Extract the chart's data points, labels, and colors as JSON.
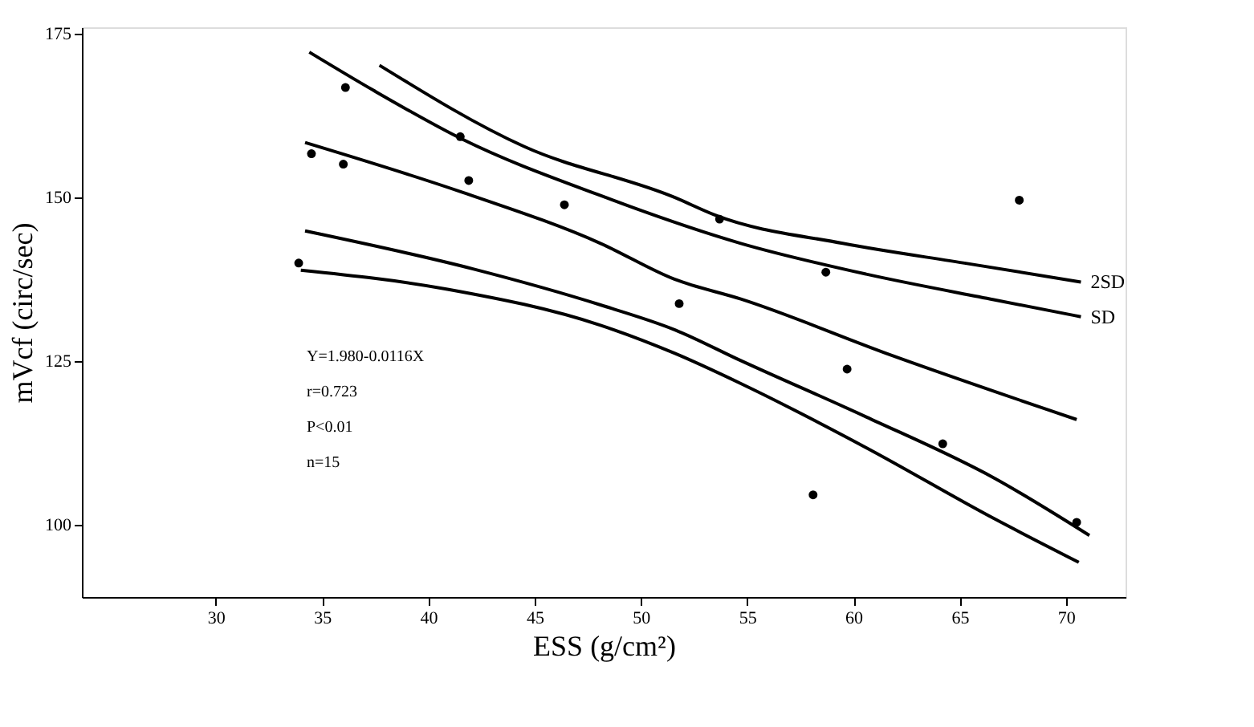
{
  "chart_data": {
    "type": "scatter",
    "xlabel": "ESS (g/cm²)",
    "ylabel": "mVcf (circ/sec)",
    "xlim": [
      23.7,
      72.8
    ],
    "ylim": [
      89,
      176
    ],
    "xticks": [
      30,
      35,
      40,
      45,
      50,
      55,
      60,
      65,
      70
    ],
    "yticks": [
      100,
      125,
      150,
      175
    ],
    "grid": false,
    "legend": false,
    "marker": "circle",
    "annotations": [
      "Y=1.980-0.0116X",
      "r=0.723",
      "P<0.01",
      "n=15"
    ],
    "series": [
      {
        "color": "#000000",
        "x": [
          33.9,
          34.5,
          36.1,
          36.0,
          41.5,
          41.9,
          46.4,
          53.7,
          67.8,
          58.7,
          51.8,
          59.7,
          64.2,
          58.1,
          70.5
        ],
        "values": [
          140,
          156.7,
          166.8,
          155.1,
          159.3,
          152.6,
          148.9,
          146.7,
          149.6,
          138.6,
          133.8,
          123.8,
          112.4,
          104.6,
          100.4
        ]
      },
      {
        "type": "line",
        "name": "2SD",
        "color": "#000000",
        "marker": "none",
        "line_style": "solid",
        "x": [
          37.7,
          44.5,
          51.6,
          53.5,
          59.5,
          65.4,
          70.7
        ],
        "values": [
          170.2,
          157.8,
          150.0,
          147.3,
          143.0,
          139.9,
          137.1
        ]
      },
      {
        "type": "line",
        "name": "SD",
        "color": "#000000",
        "marker": "none",
        "line_style": "solid",
        "x": [
          34.4,
          37.4,
          41.6,
          48.1,
          54.7,
          60.6,
          66.6,
          70.7
        ],
        "values": [
          172.2,
          166.4,
          158.9,
          150.3,
          143.0,
          138.3,
          134.4,
          131.8
        ]
      },
      {
        "type": "line",
        "color": "#000000",
        "marker": "none",
        "line_style": "solid",
        "x": [
          34.2,
          41.6,
          48.1,
          51.6,
          54.7,
          61.8,
          70.5
        ],
        "values": [
          158.4,
          150.8,
          143.0,
          137.5,
          134.5,
          125.9,
          116.1
        ]
      },
      {
        "type": "line",
        "color": "#000000",
        "marker": "none",
        "line_style": "solid",
        "x": [
          34.2,
          42.1,
          48.1,
          51.6,
          54.7,
          60.6,
          66.6,
          71.1
        ],
        "values": [
          144.9,
          139.1,
          133.6,
          129.8,
          125.1,
          116.5,
          107.2,
          98.4
        ]
      },
      {
        "type": "line",
        "color": "#000000",
        "marker": "none",
        "line_style": "solid",
        "x": [
          34.0,
          40.9,
          48.1,
          51.6,
          54.7,
          60.6,
          66.6,
          70.6
        ],
        "values": [
          138.9,
          136.0,
          130.5,
          126.2,
          121.6,
          111.8,
          101.0,
          94.3
        ]
      }
    ]
  }
}
